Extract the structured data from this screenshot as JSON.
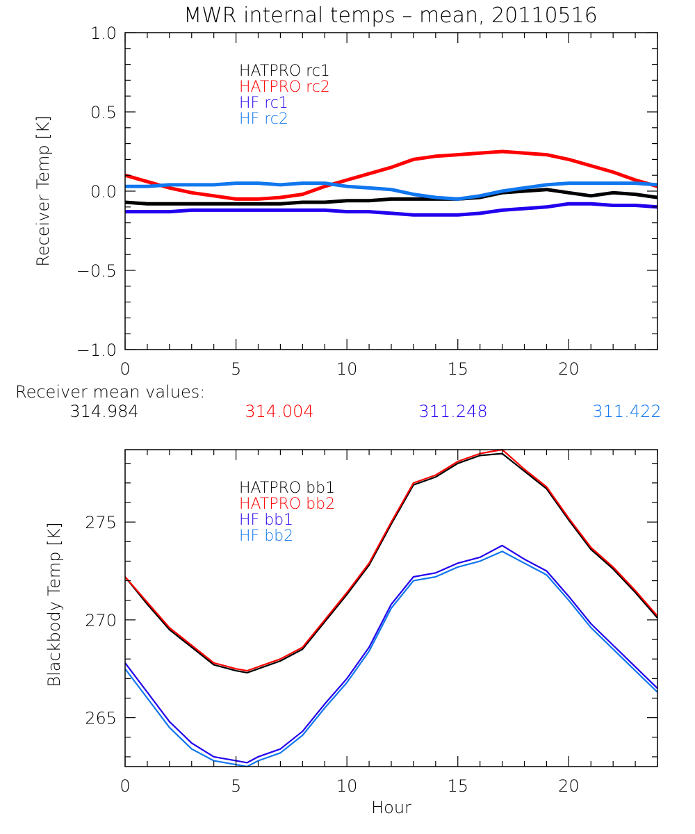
{
  "title": "MWR internal temps – mean, 20110516",
  "chart_data": [
    {
      "type": "line",
      "id": "receiver",
      "title": "MWR internal temps – mean, 20110516",
      "xlabel": "",
      "ylabel": "Receiver Temp [K]",
      "xlim": [
        0,
        24
      ],
      "ylim": [
        -1.0,
        1.0
      ],
      "x_major_ticks": [
        0,
        5,
        10,
        15,
        20
      ],
      "x_tick_labels": [
        "0",
        "5",
        "10",
        "15",
        "20"
      ],
      "y_major_ticks": [
        -1.0,
        -0.5,
        0.0,
        0.5,
        1.0
      ],
      "y_tick_labels": [
        "−1.0",
        "−0.5",
        "0.0",
        "0.5",
        "1.0"
      ],
      "grid": false,
      "legend_position": "top-center",
      "x": [
        0,
        1,
        2,
        3,
        4,
        5,
        6,
        7,
        8,
        9,
        10,
        11,
        12,
        13,
        14,
        15,
        16,
        17,
        18,
        19,
        20,
        21,
        22,
        23,
        24
      ],
      "series": [
        {
          "name": "HATPRO rc1",
          "color": "#000000",
          "values": [
            -0.07,
            -0.08,
            -0.08,
            -0.08,
            -0.08,
            -0.08,
            -0.08,
            -0.08,
            -0.07,
            -0.07,
            -0.06,
            -0.06,
            -0.05,
            -0.05,
            -0.05,
            -0.05,
            -0.04,
            -0.01,
            0.0,
            0.01,
            -0.01,
            -0.03,
            -0.01,
            -0.02,
            -0.04
          ]
        },
        {
          "name": "HATPRO rc2",
          "color": "#ff0000",
          "values": [
            0.1,
            0.06,
            0.02,
            -0.01,
            -0.03,
            -0.05,
            -0.05,
            -0.04,
            -0.02,
            0.03,
            0.07,
            0.11,
            0.15,
            0.2,
            0.22,
            0.23,
            0.24,
            0.25,
            0.24,
            0.23,
            0.2,
            0.16,
            0.12,
            0.07,
            0.03
          ]
        },
        {
          "name": "HF rc1",
          "color": "#2200ee",
          "values": [
            -0.13,
            -0.13,
            -0.13,
            -0.12,
            -0.12,
            -0.12,
            -0.12,
            -0.12,
            -0.12,
            -0.12,
            -0.13,
            -0.13,
            -0.14,
            -0.15,
            -0.15,
            -0.15,
            -0.14,
            -0.12,
            -0.11,
            -0.1,
            -0.08,
            -0.08,
            -0.09,
            -0.09,
            -0.1
          ]
        },
        {
          "name": "HF rc2",
          "color": "#1177ee",
          "values": [
            0.03,
            0.03,
            0.04,
            0.04,
            0.04,
            0.05,
            0.05,
            0.04,
            0.05,
            0.05,
            0.03,
            0.02,
            0.01,
            -0.02,
            -0.04,
            -0.05,
            -0.03,
            0.0,
            0.02,
            0.04,
            0.05,
            0.05,
            0.05,
            0.05,
            0.04
          ]
        }
      ]
    },
    {
      "type": "line",
      "id": "blackbody",
      "title": "",
      "xlabel": "Hour",
      "ylabel": "Blackbody Temp [K]",
      "xlim": [
        0,
        24
      ],
      "ylim": [
        262.5,
        278.7
      ],
      "x_major_ticks": [
        0,
        5,
        10,
        15,
        20
      ],
      "x_tick_labels": [
        "0",
        "5",
        "10",
        "15",
        "20"
      ],
      "y_major_ticks": [
        265,
        270,
        275
      ],
      "y_tick_labels": [
        "265",
        "270",
        "275"
      ],
      "grid": false,
      "legend_position": "top-center",
      "x": [
        0,
        1,
        2,
        3,
        4,
        5,
        5.5,
        6,
        7,
        8,
        9,
        10,
        11,
        12,
        13,
        14,
        15,
        16,
        17,
        18,
        19,
        20,
        21,
        22,
        23,
        24
      ],
      "series": [
        {
          "name": "HATPRO bb1",
          "color": "#000000",
          "values": [
            272.2,
            270.8,
            269.5,
            268.6,
            267.7,
            267.4,
            267.3,
            267.5,
            267.9,
            268.5,
            269.9,
            271.3,
            272.8,
            274.9,
            276.9,
            277.3,
            278.0,
            278.4,
            278.5,
            277.6,
            276.7,
            275.1,
            273.6,
            272.6,
            271.4,
            270.1
          ]
        },
        {
          "name": "HATPRO bb2",
          "color": "#ff0000",
          "values": [
            272.2,
            270.9,
            269.6,
            268.7,
            267.8,
            267.5,
            267.4,
            267.6,
            268.0,
            268.6,
            270.0,
            271.4,
            272.9,
            275.0,
            277.0,
            277.4,
            278.1,
            278.5,
            278.7,
            277.7,
            276.8,
            275.2,
            273.7,
            272.7,
            271.5,
            270.2
          ]
        },
        {
          "name": "HF bb1",
          "color": "#2200ee",
          "values": [
            267.8,
            266.3,
            264.8,
            263.7,
            263.0,
            262.8,
            262.7,
            263.0,
            263.4,
            264.3,
            265.7,
            267.0,
            268.6,
            270.8,
            272.2,
            272.4,
            272.9,
            273.2,
            273.8,
            273.1,
            272.5,
            271.2,
            269.8,
            268.7,
            267.6,
            266.5
          ]
        },
        {
          "name": "HF bb2",
          "color": "#1177ee",
          "values": [
            267.5,
            266.0,
            264.5,
            263.4,
            262.8,
            262.6,
            262.5,
            262.8,
            263.2,
            264.1,
            265.5,
            266.8,
            268.4,
            270.6,
            272.0,
            272.2,
            272.7,
            273.0,
            273.5,
            272.9,
            272.3,
            271.0,
            269.6,
            268.5,
            267.4,
            266.3
          ]
        }
      ]
    }
  ],
  "legend_top": [
    {
      "label": "HATPRO rc1",
      "color": "#000000"
    },
    {
      "label": "HATPRO rc2",
      "color": "#ff0000"
    },
    {
      "label": "HF rc1",
      "color": "#2200ee"
    },
    {
      "label": "HF rc2",
      "color": "#1177ee"
    }
  ],
  "legend_bottom": [
    {
      "label": "HATPRO bb1",
      "color": "#000000"
    },
    {
      "label": "HATPRO bb2",
      "color": "#ff0000"
    },
    {
      "label": "HF bb1",
      "color": "#2200ee"
    },
    {
      "label": "HF bb2",
      "color": "#1177ee"
    }
  ],
  "receiver_means": {
    "heading": "Receiver mean values:",
    "values": [
      {
        "label": "314.984",
        "color": "#000000"
      },
      {
        "label": "314.004",
        "color": "#ff0000"
      },
      {
        "label": "311.248",
        "color": "#2200ee"
      },
      {
        "label": "311.422",
        "color": "#1177ee"
      }
    ]
  }
}
